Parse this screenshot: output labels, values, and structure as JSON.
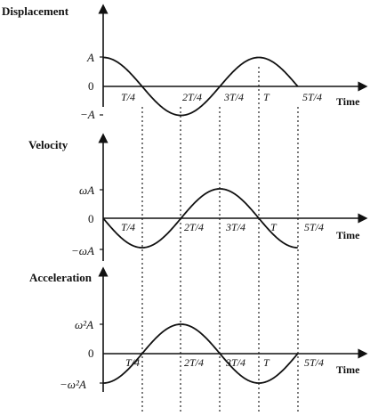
{
  "panels": [
    {
      "key": "displacement",
      "title": "Displacement",
      "y_labels": {
        "pos": "A",
        "zero": "0",
        "neg": "−A"
      },
      "x_tick_labels": [
        "T/4",
        "2T/4",
        "3T/4",
        "T",
        "5T/4"
      ],
      "x_axis_label": "Time"
    },
    {
      "key": "velocity",
      "title": "Velocity",
      "y_labels": {
        "pos": "ωA",
        "zero": "0",
        "neg": "−ωA"
      },
      "x_tick_labels": [
        "T/4",
        "2T/4",
        "3T/4",
        "T",
        "5T/4"
      ],
      "x_axis_label": "Time"
    },
    {
      "key": "acceleration",
      "title": "Acceleration",
      "y_labels": {
        "pos": "ω²A",
        "zero": "0",
        "neg": "−ω²A"
      },
      "x_tick_labels": [
        "T/4",
        "2T/4",
        "3T/4",
        "T",
        "5T/4"
      ],
      "x_axis_label": "Time"
    }
  ],
  "chart_data": [
    {
      "type": "line",
      "title": "Displacement",
      "xlabel": "Time",
      "x_ticks": [
        "T/4",
        "2T/4",
        "3T/4",
        "T",
        "5T/4"
      ],
      "x": [
        0,
        0.25,
        0.5,
        0.75,
        1.0,
        1.25
      ],
      "y": [
        1,
        0,
        -1,
        0,
        1,
        0
      ],
      "y_ticks": [
        "A",
        "0",
        "−A"
      ]
    },
    {
      "type": "line",
      "title": "Velocity",
      "xlabel": "Time",
      "x_ticks": [
        "T/4",
        "2T/4",
        "3T/4",
        "T",
        "5T/4"
      ],
      "x": [
        0,
        0.25,
        0.5,
        0.75,
        1.0,
        1.25
      ],
      "y": [
        0,
        -1,
        0,
        1,
        0,
        -1
      ],
      "y_ticks": [
        "ωA",
        "0",
        "−ωA"
      ]
    },
    {
      "type": "line",
      "title": "Acceleration",
      "xlabel": "Time",
      "x_ticks": [
        "T/4",
        "2T/4",
        "3T/4",
        "T",
        "5T/4"
      ],
      "x": [
        0,
        0.25,
        0.5,
        0.75,
        1.0,
        1.25
      ],
      "y": [
        -1,
        0,
        1,
        0,
        -1,
        0
      ],
      "y_ticks": [
        "ω²A",
        "0",
        "−ω²A"
      ]
    }
  ]
}
